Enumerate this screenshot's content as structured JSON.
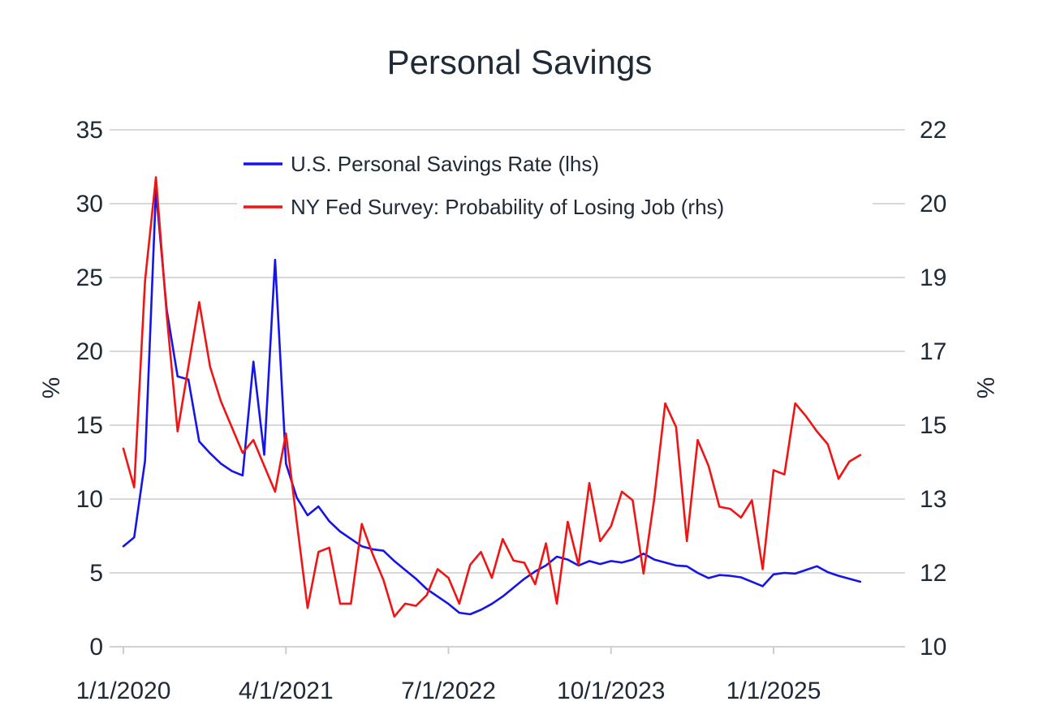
{
  "colors": {
    "background": "#ffffff",
    "text": "#1f2a37",
    "grid": "#d9d9d9",
    "savings_blue": "#1414eb",
    "survey_red": "#f01414"
  },
  "chart_data": {
    "type": "line",
    "title": "Personal Savings",
    "legend_position": "top-center-inside",
    "grid": true,
    "x": {
      "months": [
        "1/1/2020",
        "2/1/2020",
        "3/1/2020",
        "4/1/2020",
        "5/1/2020",
        "6/1/2020",
        "7/1/2020",
        "8/1/2020",
        "9/1/2020",
        "10/1/2020",
        "11/1/2020",
        "12/1/2020",
        "1/1/2021",
        "2/1/2021",
        "3/1/2021",
        "4/1/2021",
        "5/1/2021",
        "6/1/2021",
        "7/1/2021",
        "8/1/2021",
        "9/1/2021",
        "10/1/2021",
        "11/1/2021",
        "12/1/2021",
        "1/1/2022",
        "2/1/2022",
        "3/1/2022",
        "4/1/2022",
        "5/1/2022",
        "6/1/2022",
        "7/1/2022",
        "8/1/2022",
        "9/1/2022",
        "10/1/2022",
        "11/1/2022",
        "12/1/2022",
        "1/1/2023",
        "2/1/2023",
        "3/1/2023",
        "4/1/2023",
        "5/1/2023",
        "6/1/2023",
        "7/1/2023",
        "8/1/2023",
        "9/1/2023",
        "10/1/2023",
        "11/1/2023",
        "12/1/2023",
        "1/1/2024",
        "2/1/2024",
        "3/1/2024",
        "4/1/2024",
        "5/1/2024",
        "6/1/2024",
        "7/1/2024",
        "8/1/2024",
        "9/1/2024",
        "10/1/2024",
        "11/1/2024",
        "12/1/2024",
        "1/1/2025",
        "2/1/2025",
        "3/1/2025",
        "4/1/2025",
        "5/1/2025",
        "6/1/2025",
        "7/1/2025",
        "8/1/2025",
        "9/1/2025"
      ],
      "tick_indices": [
        0,
        15,
        30,
        45,
        60
      ],
      "tick_labels": [
        "1/1/2020",
        "4/1/2021",
        "7/1/2022",
        "10/1/2023",
        "1/1/2025"
      ]
    },
    "y_left": {
      "label": "%",
      "min": 0,
      "max": 35,
      "ticks": [
        "0",
        "5",
        "10",
        "15",
        "20",
        "25",
        "30",
        "35"
      ]
    },
    "y_right": {
      "label": "%",
      "min": 10,
      "max": 22,
      "tick_labels_bottom_to_top": [
        "10",
        "12",
        "13",
        "15",
        "17",
        "19",
        "20",
        "22"
      ]
    },
    "series": [
      {
        "name": "U.S. Personal Savings Rate (lhs)",
        "axis": "left",
        "color": "#1414eb",
        "values": [
          6.8,
          7.4,
          12.6,
          30.9,
          22.8,
          18.3,
          18.1,
          13.9,
          13.1,
          12.4,
          11.9,
          11.6,
          19.3,
          13.0,
          26.2,
          12.4,
          10.1,
          8.9,
          9.5,
          8.5,
          7.8,
          7.3,
          6.8,
          6.6,
          6.5,
          5.8,
          5.2,
          4.6,
          3.9,
          3.4,
          2.9,
          2.3,
          2.2,
          2.5,
          2.9,
          3.4,
          4.0,
          4.6,
          5.1,
          5.5,
          6.1,
          5.9,
          5.5,
          5.8,
          5.6,
          5.8,
          5.7,
          5.9,
          6.3,
          5.9,
          5.7,
          5.5,
          5.45,
          5.0,
          4.65,
          4.85,
          4.8,
          4.7,
          4.4,
          4.1,
          4.9,
          5.0,
          4.95,
          5.2,
          5.45,
          5.05,
          4.8,
          4.6,
          4.4
        ]
      },
      {
        "name": "NY Fed Survey: Probability of Losing Job (rhs)",
        "axis": "right",
        "color": "#f01414",
        "values": [
          14.6,
          13.7,
          18.5,
          20.9,
          17.7,
          15.0,
          16.5,
          18.0,
          16.5,
          15.7,
          15.1,
          14.5,
          14.8,
          14.2,
          13.6,
          14.95,
          12.9,
          10.9,
          12.2,
          12.3,
          11.0,
          11.0,
          12.85,
          12.15,
          11.55,
          10.7,
          11.0,
          10.95,
          11.2,
          11.8,
          11.6,
          11.0,
          11.9,
          12.2,
          11.6,
          12.5,
          12.0,
          11.95,
          11.45,
          12.4,
          11.0,
          12.9,
          11.9,
          13.8,
          12.45,
          12.8,
          13.6,
          13.4,
          11.7,
          13.45,
          15.65,
          15.1,
          12.45,
          14.8,
          14.2,
          13.25,
          13.2,
          13.0,
          13.4,
          11.8,
          14.1,
          14.0,
          15.65,
          15.35,
          15.0,
          14.7,
          13.9,
          14.3,
          14.45
        ]
      }
    ]
  }
}
